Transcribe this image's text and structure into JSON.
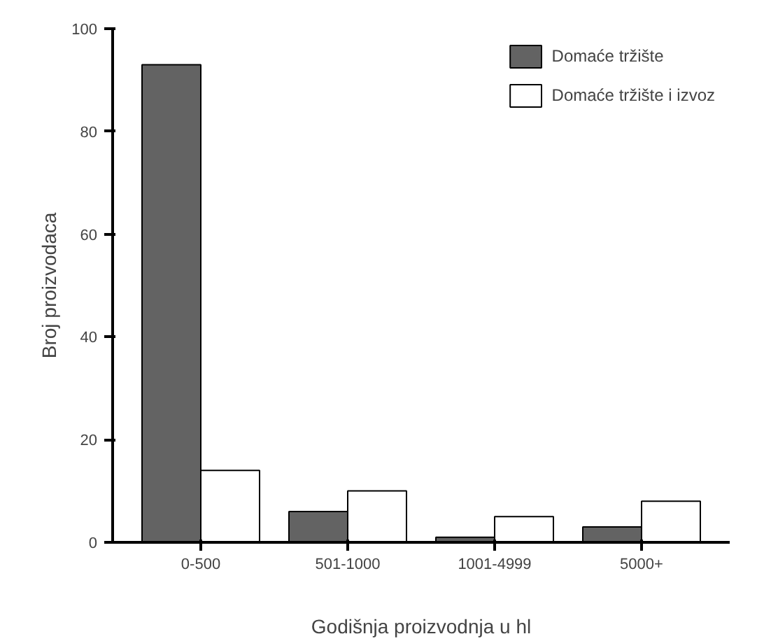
{
  "chart_data": {
    "type": "bar",
    "xlabel": "Godišnja proizvodnja u hl",
    "ylabel": "Broj proizvodaca",
    "categories": [
      "0-500",
      "501-1000",
      "1001-4999",
      "5000+"
    ],
    "series": [
      {
        "name": "Domaće tržište",
        "color": "#636363",
        "values": [
          93,
          6,
          1,
          3
        ]
      },
      {
        "name": "Domaće tržište i izvoz",
        "color": "#ffffff",
        "values": [
          14,
          10,
          5,
          8
        ]
      }
    ],
    "ylim": [
      0,
      100
    ],
    "yticks": [
      0,
      20,
      40,
      60,
      80,
      100
    ],
    "grid": false,
    "legend": "top right"
  }
}
